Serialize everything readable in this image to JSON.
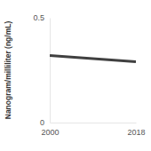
{
  "chart_data": {
    "type": "line",
    "y_label": "Nanogram/milliliter (ng/mL)",
    "x": [
      2000,
      2018
    ],
    "values": [
      0.32,
      0.29
    ],
    "color": "#404040",
    "xlim": [
      2000,
      2018
    ],
    "xticks": [
      2000,
      2018
    ],
    "ylim": [
      0,
      0.5
    ],
    "yticks": [
      0,
      0.5
    ],
    "grid": false
  }
}
